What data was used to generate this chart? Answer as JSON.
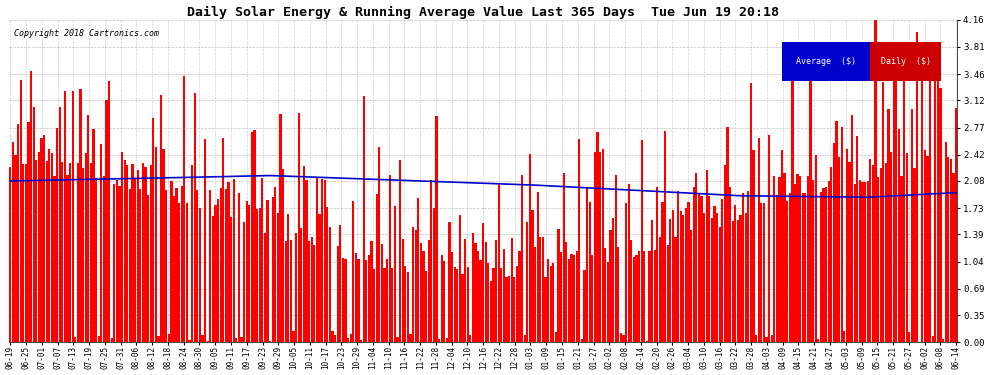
{
  "title": "Daily Solar Energy & Running Average Value Last 365 Days  Tue Jun 19 20:18",
  "copyright": "Copyright 2018 Cartronics.com",
  "bar_color": "#ff0000",
  "avg_line_color": "#0000cc",
  "background_color": "#ffffff",
  "plot_bg_color": "#ffffff",
  "grid_color": "#b0b0b0",
  "ylim": [
    0.0,
    4.16
  ],
  "yticks": [
    0.0,
    0.35,
    0.69,
    1.04,
    1.39,
    1.73,
    2.08,
    2.42,
    2.77,
    3.12,
    3.46,
    3.81,
    4.16
  ],
  "legend_avg_bg": "#0000cc",
  "legend_daily_bg": "#cc0000",
  "legend_text_color": "#ffffff",
  "n_bars": 365,
  "x_tick_labels": [
    "06-19",
    "06-25",
    "07-01",
    "07-07",
    "07-13",
    "07-19",
    "07-25",
    "07-31",
    "08-06",
    "08-12",
    "08-18",
    "08-24",
    "08-30",
    "09-05",
    "09-11",
    "09-17",
    "09-23",
    "09-29",
    "10-05",
    "10-11",
    "10-17",
    "10-23",
    "10-29",
    "11-04",
    "11-10",
    "11-16",
    "11-22",
    "11-28",
    "12-04",
    "12-10",
    "12-16",
    "12-22",
    "12-28",
    "01-03",
    "01-09",
    "01-15",
    "01-21",
    "01-27",
    "02-02",
    "02-08",
    "02-14",
    "02-20",
    "02-26",
    "03-04",
    "03-10",
    "03-16",
    "03-22",
    "03-28",
    "04-03",
    "04-09",
    "04-15",
    "04-21",
    "04-27",
    "05-03",
    "05-09",
    "05-15",
    "05-21",
    "05-27",
    "06-02",
    "06-08",
    "06-14"
  ]
}
